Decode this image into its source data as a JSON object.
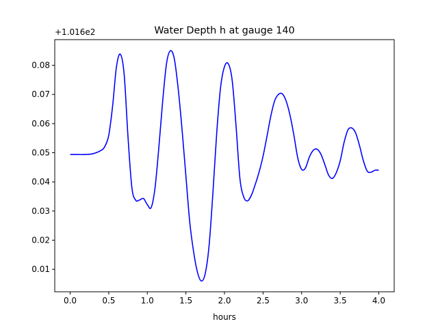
{
  "chart_data": {
    "type": "line",
    "title": "Water Depth h at gauge 140",
    "xlabel": "hours",
    "ylabel": "",
    "offset_label": "+1.016e2",
    "xlim": [
      -0.2,
      4.2
    ],
    "ylim": [
      0.0023,
      0.0888
    ],
    "xticks": [
      0.0,
      0.5,
      1.0,
      1.5,
      2.0,
      2.5,
      3.0,
      3.5,
      4.0
    ],
    "xtick_labels": [
      "0.0",
      "0.5",
      "1.0",
      "1.5",
      "2.0",
      "2.5",
      "3.0",
      "3.5",
      "4.0"
    ],
    "yticks": [
      0.01,
      0.02,
      0.03,
      0.04,
      0.05,
      0.06,
      0.07,
      0.08
    ],
    "ytick_labels": [
      "0.01",
      "0.02",
      "0.03",
      "0.04",
      "0.05",
      "0.06",
      "0.07",
      "0.08"
    ],
    "grid": false,
    "line_color": "#0000ff",
    "series": [
      {
        "x": [
          0.0,
          0.1,
          0.2,
          0.3,
          0.4,
          0.45,
          0.5,
          0.55,
          0.6,
          0.65,
          0.7,
          0.75,
          0.8,
          0.85,
          0.9,
          0.95,
          1.0,
          1.05,
          1.1,
          1.15,
          1.2,
          1.25,
          1.3,
          1.35,
          1.4,
          1.45,
          1.5,
          1.55,
          1.6,
          1.65,
          1.7,
          1.75,
          1.8,
          1.85,
          1.9,
          1.95,
          2.0,
          2.05,
          2.1,
          2.15,
          2.2,
          2.25,
          2.3,
          2.35,
          2.4,
          2.45,
          2.5,
          2.55,
          2.6,
          2.65,
          2.7,
          2.75,
          2.8,
          2.85,
          2.9,
          2.95,
          3.0,
          3.05,
          3.1,
          3.15,
          3.2,
          3.25,
          3.3,
          3.35,
          3.4,
          3.45,
          3.5,
          3.55,
          3.6,
          3.65,
          3.7,
          3.75,
          3.8,
          3.85,
          3.9,
          3.95,
          4.0
        ],
        "y": [
          0.0494,
          0.0494,
          0.0494,
          0.0497,
          0.0508,
          0.0522,
          0.056,
          0.066,
          0.0795,
          0.0838,
          0.0768,
          0.0552,
          0.038,
          0.0337,
          0.0338,
          0.0343,
          0.0322,
          0.0312,
          0.038,
          0.052,
          0.068,
          0.0808,
          0.085,
          0.0822,
          0.072,
          0.058,
          0.042,
          0.0262,
          0.016,
          0.009,
          0.006,
          0.0085,
          0.018,
          0.0362,
          0.057,
          0.0725,
          0.0795,
          0.0805,
          0.0748,
          0.0592,
          0.0412,
          0.0348,
          0.0335,
          0.0355,
          0.0392,
          0.0435,
          0.0488,
          0.0555,
          0.0625,
          0.0678,
          0.07,
          0.0702,
          0.0677,
          0.0628,
          0.056,
          0.0482,
          0.0443,
          0.0448,
          0.0485,
          0.0508,
          0.0512,
          0.0495,
          0.046,
          0.0423,
          0.0412,
          0.0432,
          0.0472,
          0.0535,
          0.0578,
          0.0585,
          0.0568,
          0.0525,
          0.0473,
          0.0437,
          0.0433,
          0.044,
          0.044
        ]
      }
    ]
  }
}
